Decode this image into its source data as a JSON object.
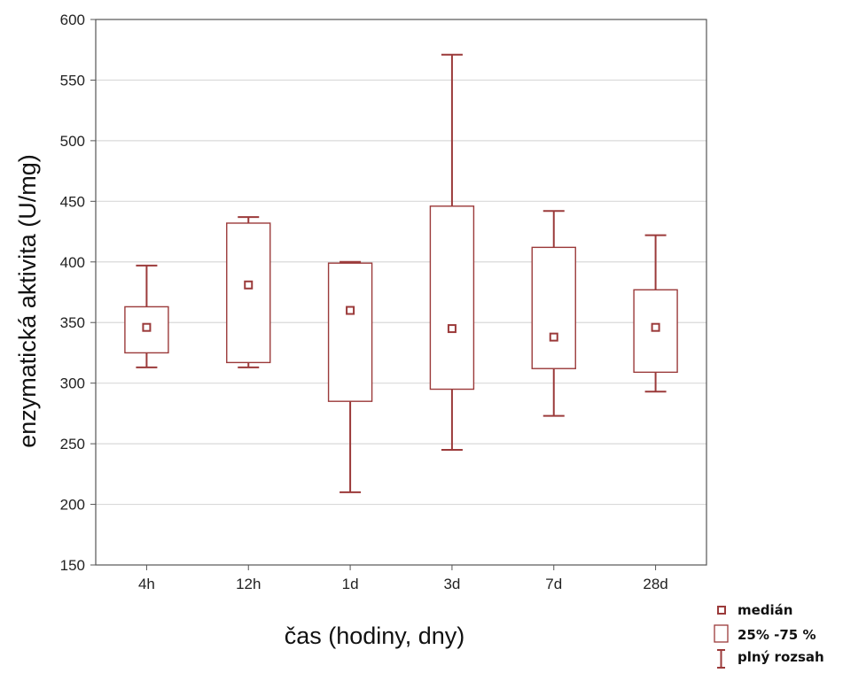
{
  "chart_data": {
    "type": "boxplot",
    "xlabel": "čas (hodiny, dny)",
    "ylabel": "enzymatická aktivita (U/mg)",
    "ylim": [
      150,
      600
    ],
    "yticks": [
      150,
      200,
      250,
      300,
      350,
      400,
      450,
      500,
      550,
      600
    ],
    "grid": true,
    "categories": [
      "4h",
      "12h",
      "1d",
      "3d",
      "7d",
      "28d"
    ],
    "series": [
      {
        "category": "4h",
        "min": 313,
        "q1": 325,
        "median": 346,
        "q3": 363,
        "max": 397
      },
      {
        "category": "12h",
        "min": 313,
        "q1": 317,
        "median": 381,
        "q3": 432,
        "max": 437
      },
      {
        "category": "1d",
        "min": 210,
        "q1": 285,
        "median": 360,
        "q3": 399,
        "max": 400
      },
      {
        "category": "3d",
        "min": 245,
        "q1": 295,
        "median": 345,
        "q3": 446,
        "max": 571
      },
      {
        "category": "7d",
        "min": 273,
        "q1": 312,
        "median": 338,
        "q3": 412,
        "max": 442
      },
      {
        "category": "28d",
        "min": 293,
        "q1": 309,
        "median": 346,
        "q3": 377,
        "max": 422
      }
    ],
    "legend": {
      "position": "bottom-right",
      "items": [
        {
          "symbol": "median-marker",
          "label": "medián"
        },
        {
          "symbol": "box",
          "label": "25% -75 %"
        },
        {
          "symbol": "whisker",
          "label": "plný rozsah"
        }
      ]
    },
    "colors": {
      "series": "#9b3a3a",
      "grid": "#d9d9d9",
      "frame": "#555555"
    }
  }
}
